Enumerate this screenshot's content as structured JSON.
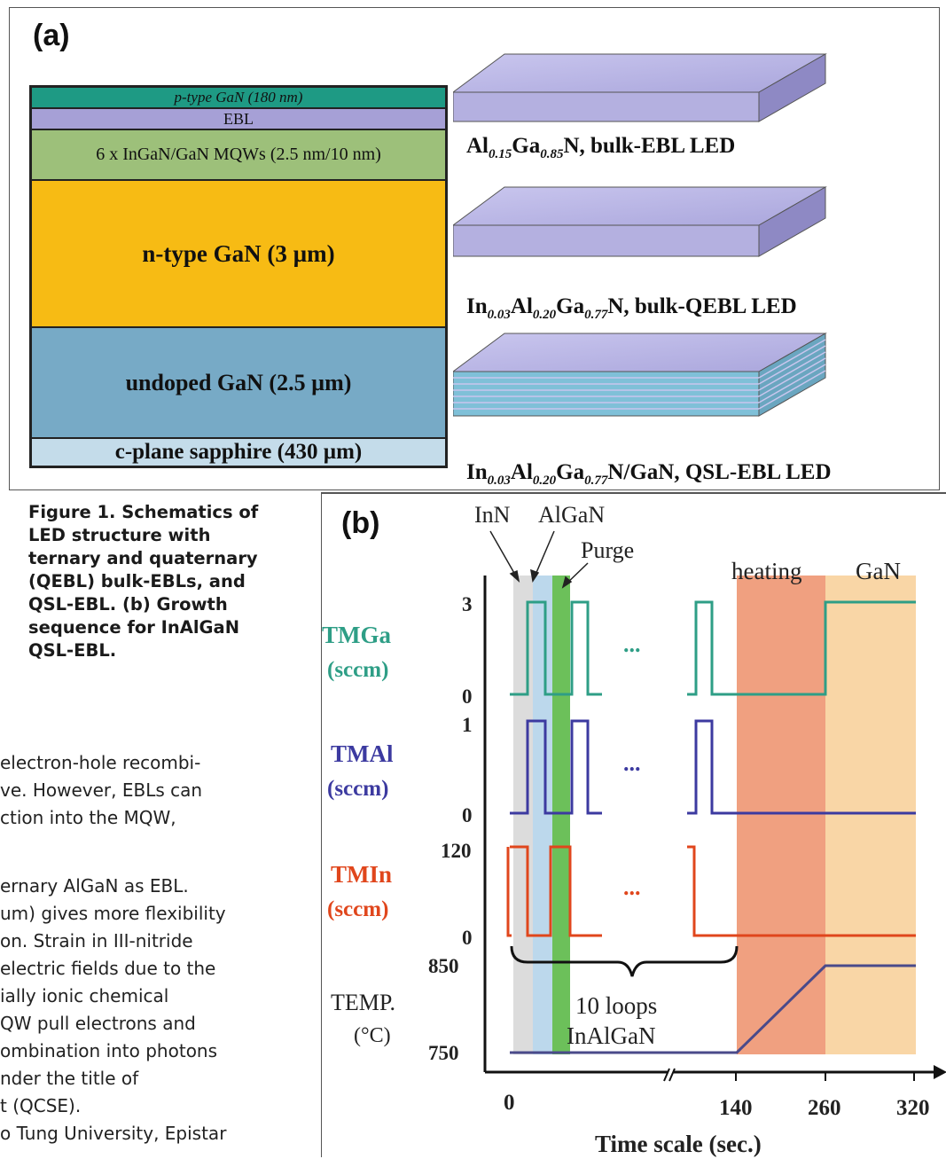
{
  "panel_a": {
    "letter": "(a)",
    "layers": [
      {
        "label": "p-type GaN (180 nm)",
        "color": "#1e9a84"
      },
      {
        "label": "EBL",
        "color": "#a6a0d6"
      },
      {
        "label": "6 x InGaN/GaN MQWs (2.5 nm/10 nm)",
        "color": "#9dc07a"
      },
      {
        "label": "n-type GaN (3 µm)",
        "color": "#f7bb14"
      },
      {
        "label": "undoped GaN (2.5 µm)",
        "color": "#77aac6"
      },
      {
        "label": "c-plane sapphire (430 µm)",
        "color": "#c4dcea"
      }
    ],
    "slabs": [
      {
        "label_parts": [
          "Al",
          "0.15",
          "Ga",
          "0.85",
          "N, bulk-EBL LED"
        ]
      },
      {
        "label_parts": [
          "In",
          "0.03",
          "Al",
          "0.20",
          "Ga",
          "0.77",
          "N, bulk-QEBL LED"
        ]
      },
      {
        "label_parts": [
          "In",
          "0.03",
          "Al",
          "0.20",
          "Ga",
          "0.77",
          "N/GaN, QSL-EBL LED"
        ]
      }
    ]
  },
  "caption": {
    "lines": [
      "Figure 1. Schematics of",
      "LED structure with",
      "ternary and quaternary",
      "(QEBL) bulk-EBLs, and",
      "QSL-EBL. (b) Growth",
      "sequence for InAlGaN",
      "QSL-EBL."
    ]
  },
  "body_text": {
    "lines": [
      "electron-hole recombi-",
      "ve. However, EBLs can",
      "ction into the MQW,",
      "",
      "ernary AlGaN as EBL.",
      "um) gives more flexibility",
      "on. Strain in III-nitride",
      "electric fields due to the",
      "ially ionic chemical",
      "QW pull electrons and",
      "ombination into photons",
      "nder the title of",
      "t (QCSE).",
      "o Tung University, Epistar"
    ]
  },
  "panel_b": {
    "letter": "(b)",
    "annotations": {
      "inn": "InN",
      "algan": "AlGaN",
      "purge": "Purge",
      "heating": "heating",
      "gan": "GaN"
    },
    "channels": [
      {
        "name": "TMGa",
        "unit": "(sccm)",
        "max": "3",
        "min": "0",
        "color": "#2e9e86"
      },
      {
        "name": "TMAl",
        "unit": "(sccm)",
        "max": "1",
        "min": "0",
        "color": "#3c3aa0"
      },
      {
        "name": "TMIn",
        "unit": "(sccm)",
        "max": "120",
        "min": "0",
        "color": "#e0461c"
      }
    ],
    "temp": {
      "name": "TEMP.",
      "unit": "(°C)",
      "high": "850",
      "low": "750",
      "color": "#4a4a8a"
    },
    "ellipsis": "...",
    "loops_label": [
      "10 loops",
      "InAlGaN"
    ],
    "x_ticks": [
      "0",
      "140",
      "260",
      "320"
    ],
    "x_label": "Time scale (sec.)"
  }
}
